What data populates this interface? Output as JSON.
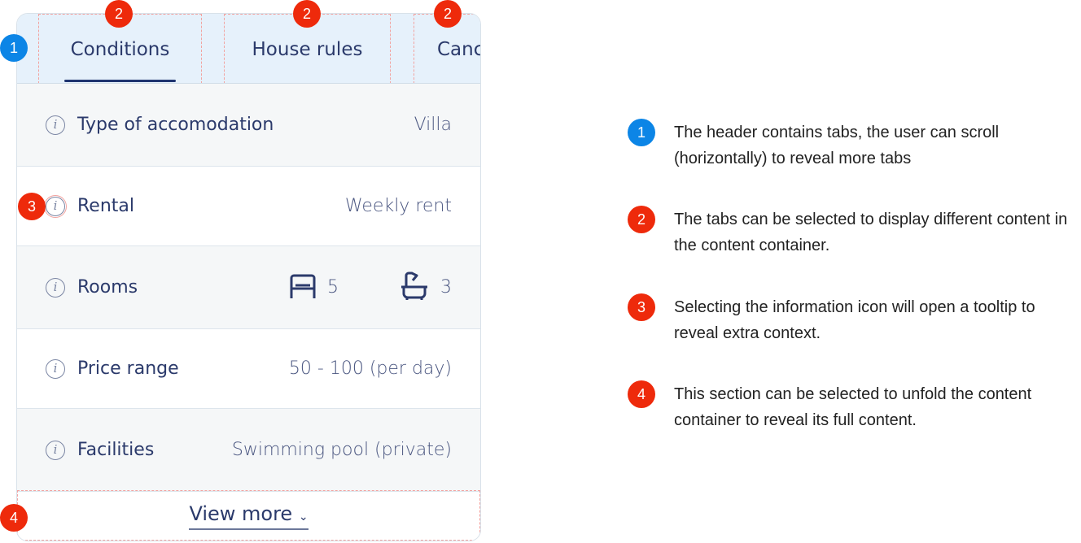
{
  "tabs": [
    {
      "label": "Conditions",
      "active": true
    },
    {
      "label": "House rules"
    },
    {
      "label": "Cancellation"
    }
  ],
  "rows": [
    {
      "label": "Type of accomodation",
      "value": "Villa"
    },
    {
      "label": "Rental",
      "value": "Weekly rent"
    },
    {
      "label": "Rooms",
      "bedrooms": "5",
      "bathrooms": "3"
    },
    {
      "label": "Price range",
      "value": "50 - 100 (per day)"
    },
    {
      "label": "Facilities",
      "value": "Swimming pool (private)"
    }
  ],
  "view_more": "View more",
  "badges": {
    "b1": "1",
    "b2": "2",
    "b3": "3",
    "b4": "4"
  },
  "notes": [
    {
      "num": "1",
      "text": "The header contains tabs, the user can scroll (horizontally) to reveal more tabs"
    },
    {
      "num": "2",
      "text": "The tabs can be selected to display different content in the content container."
    },
    {
      "num": "3",
      "text": "Selecting the information icon will open a tooltip to reveal extra context."
    },
    {
      "num": "4",
      "text": "This section can be selected to unfold the content container to reveal its full content."
    }
  ],
  "colors": {
    "header_bg": "#e6f1fb",
    "text": "#2b3a6b",
    "badge_red": "#ee2a0b",
    "badge_blue": "#0c85e6"
  }
}
